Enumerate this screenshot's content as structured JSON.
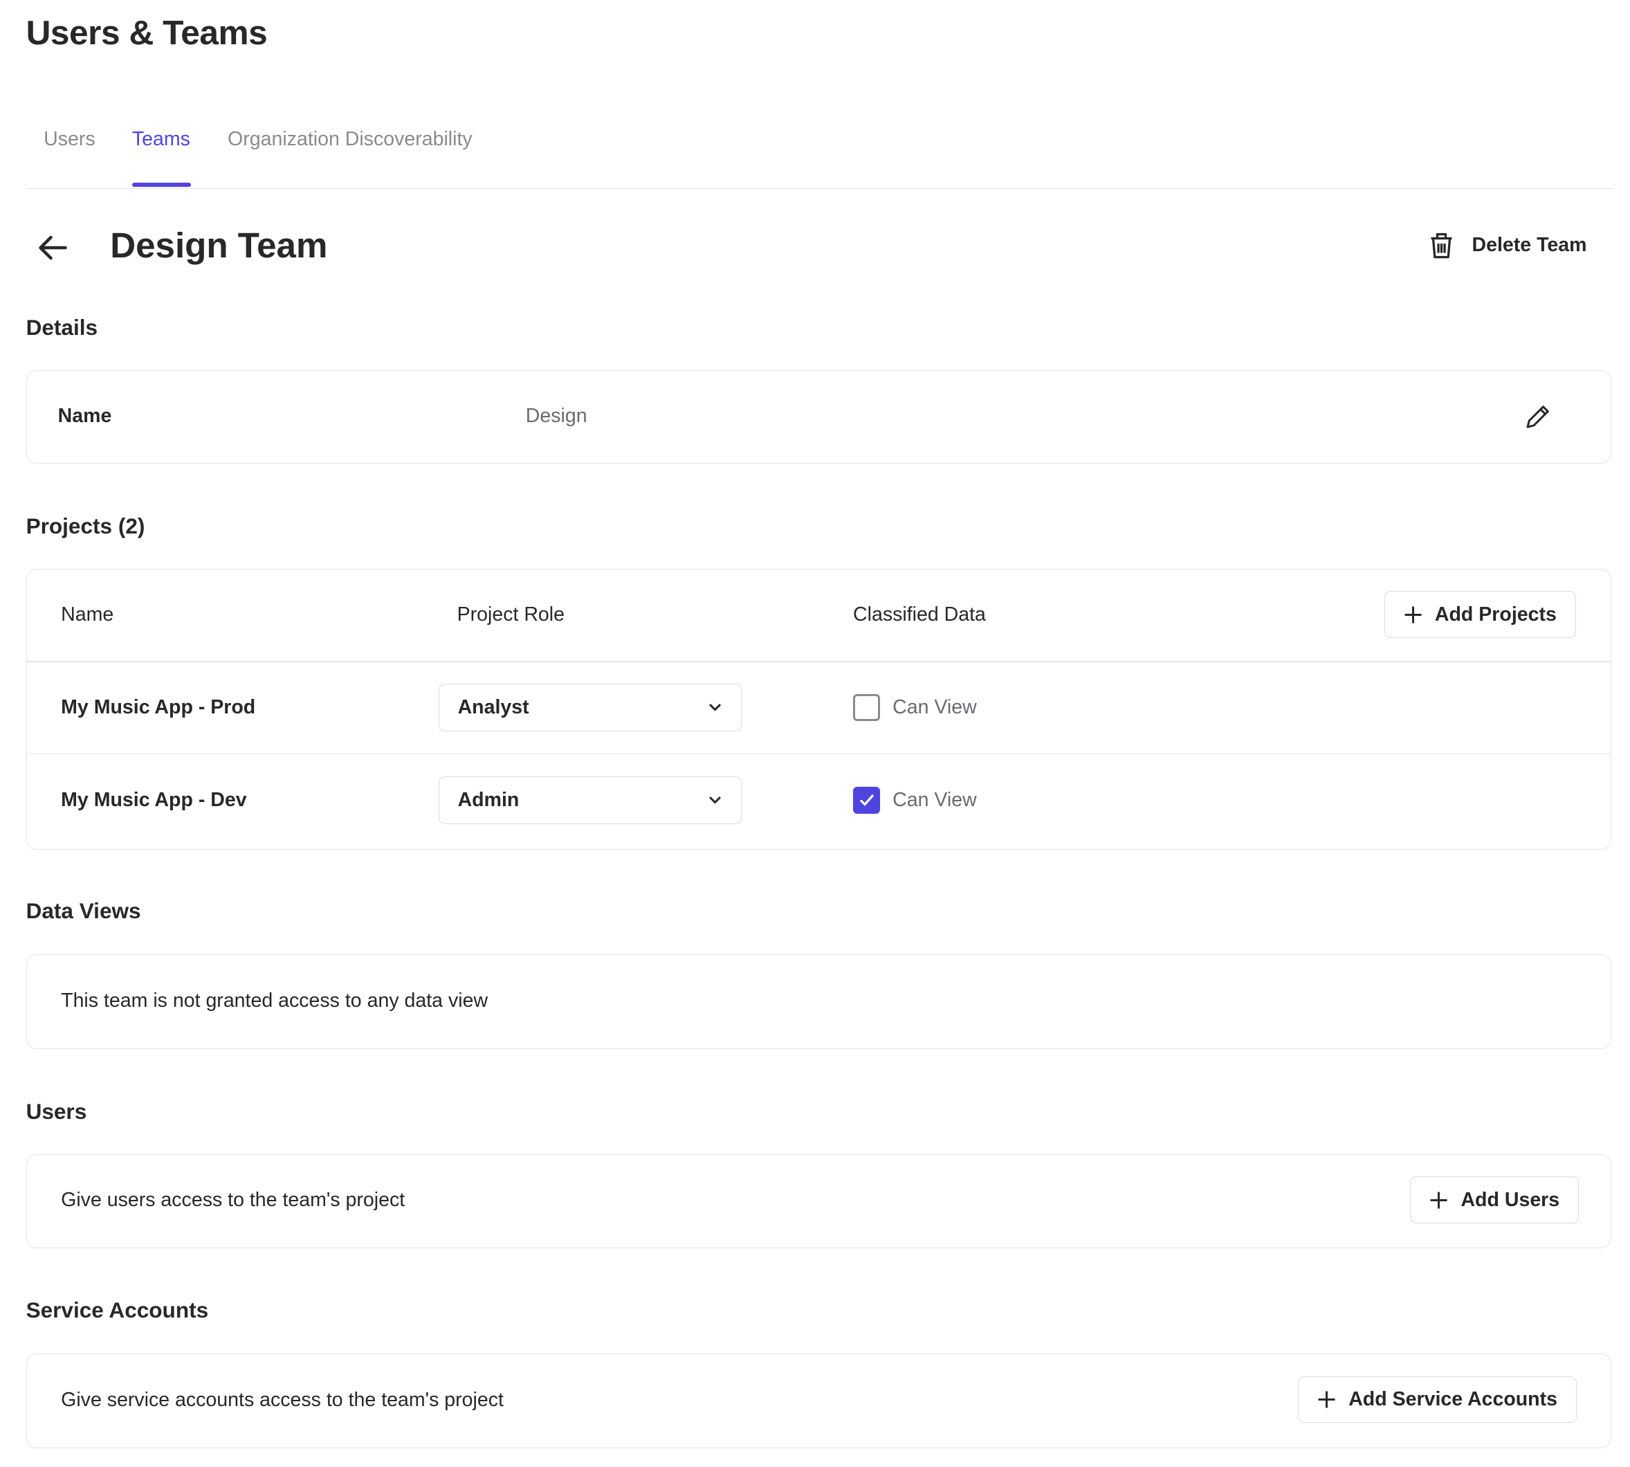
{
  "page_title": "Users & Teams",
  "tabs": [
    {
      "label": "Users"
    },
    {
      "label": "Teams",
      "active": true
    },
    {
      "label": "Organization Discoverability"
    }
  ],
  "team": {
    "title": "Design Team",
    "delete_label": "Delete Team"
  },
  "details": {
    "heading": "Details",
    "name_label": "Name",
    "name_value": "Design"
  },
  "projects": {
    "heading": "Projects (2)",
    "columns": [
      "Name",
      "Project Role",
      "Classified Data"
    ],
    "add_label": "Add Projects",
    "rows": [
      {
        "name": "My Music App - Prod",
        "role": "Analyst",
        "classified_label": "Can View",
        "classified_checked": false
      },
      {
        "name": "My Music App - Dev",
        "role": "Admin",
        "classified_label": "Can View",
        "classified_checked": true
      }
    ]
  },
  "data_views": {
    "heading": "Data Views",
    "empty_text": "This team is not granted access to any data view"
  },
  "users": {
    "heading": "Users",
    "text": "Give users access to the team's project",
    "add_label": "Add Users"
  },
  "service_accounts": {
    "heading": "Service Accounts",
    "text": "Give service accounts access to the team's project",
    "add_label": "Add Service Accounts"
  },
  "colors": {
    "accent": "#4f44e0",
    "text": "#28282b",
    "muted": "#8a8a8f",
    "border": "#e4e4e7"
  },
  "icons": [
    "arrow-left-icon",
    "trash-icon",
    "pencil-icon",
    "plus-icon",
    "chevron-down-icon",
    "check-icon"
  ]
}
